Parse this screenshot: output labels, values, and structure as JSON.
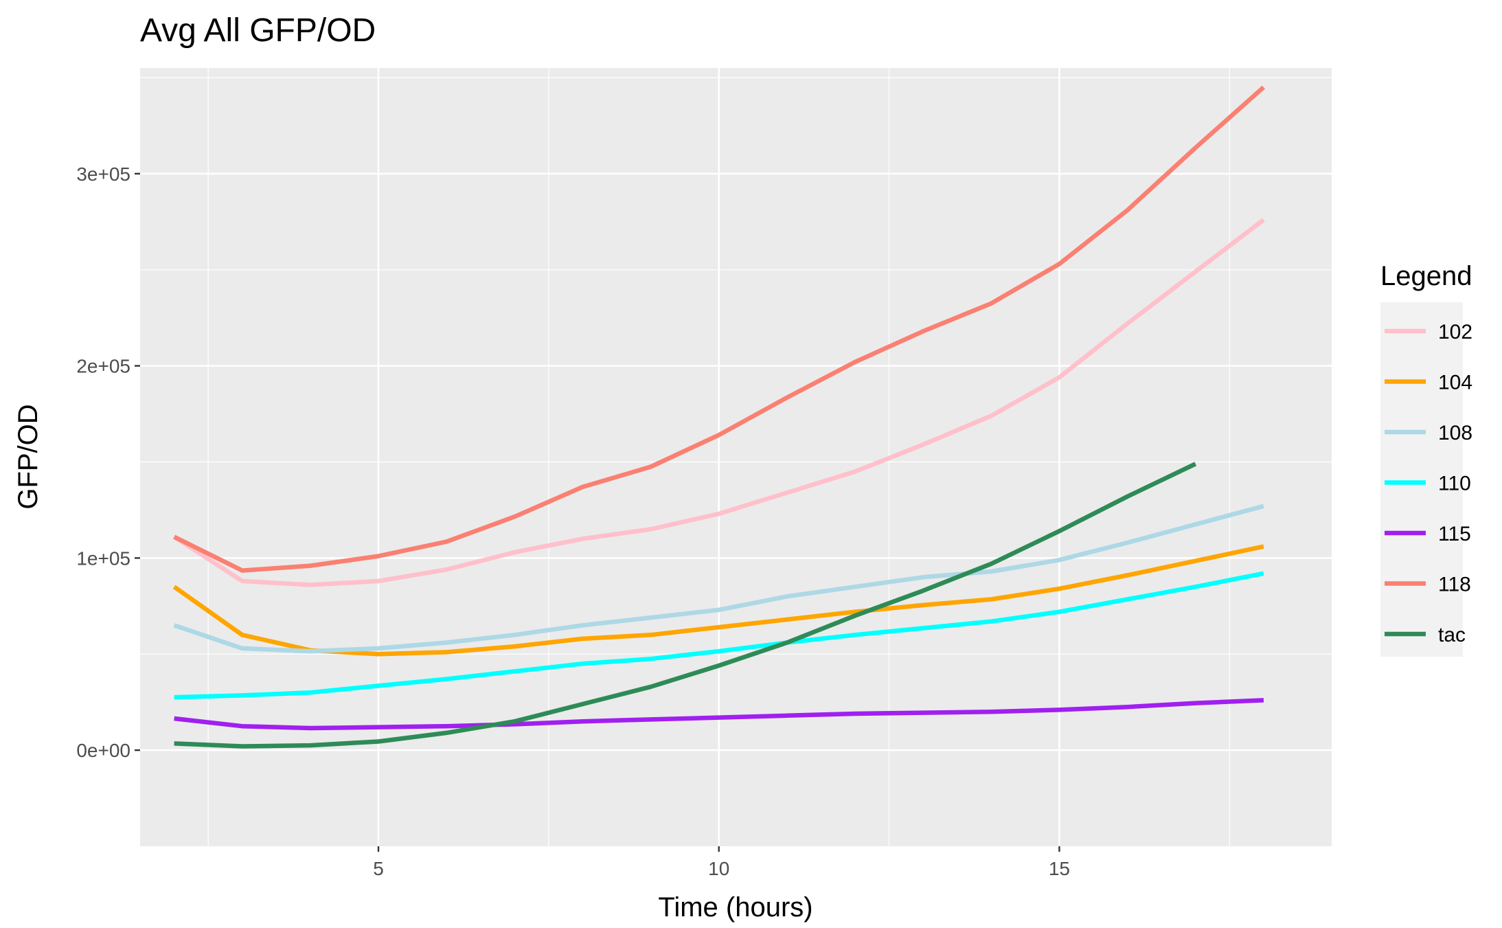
{
  "chart_data": {
    "type": "line",
    "title": "Avg All GFP/OD",
    "xlabel": "Time (hours)",
    "ylabel": "GFP/OD",
    "xlim": [
      1.5,
      19
    ],
    "ylim": [
      -50000,
      355000
    ],
    "x_ticks": [
      5,
      10,
      15
    ],
    "x_tick_labels": [
      "5",
      "10",
      "15"
    ],
    "y_ticks": [
      0,
      100000,
      200000,
      300000
    ],
    "y_tick_labels": [
      "0e+00",
      "1e+05",
      "2e+05",
      "3e+05"
    ],
    "grid": true,
    "legend": {
      "title": "Legend",
      "position": "right"
    },
    "series": [
      {
        "name": "102",
        "color": "#FFC0CB",
        "x": [
          2,
          3,
          4,
          5,
          6,
          7,
          8,
          9,
          10,
          11,
          12,
          13,
          14,
          15,
          16,
          17,
          18
        ],
        "y": [
          111000,
          88000,
          86000,
          88000,
          94000,
          103000,
          110000,
          115000,
          123000,
          134000,
          145000,
          159000,
          174000,
          194000,
          222000,
          249000,
          276000
        ]
      },
      {
        "name": "104",
        "color": "#FFA500",
        "x": [
          2,
          3,
          4,
          5,
          6,
          7,
          8,
          9,
          10,
          11,
          12,
          13,
          14,
          15,
          16,
          17,
          18
        ],
        "y": [
          85000,
          60000,
          52000,
          50000,
          51000,
          54000,
          58000,
          60000,
          64000,
          68000,
          72000,
          75500,
          78500,
          84000,
          91000,
          98500,
          106000
        ]
      },
      {
        "name": "108",
        "color": "#ADD8E6",
        "x": [
          2,
          3,
          4,
          5,
          6,
          7,
          8,
          9,
          10,
          11,
          12,
          13,
          14,
          15,
          16,
          17,
          18
        ],
        "y": [
          65000,
          53000,
          51500,
          53000,
          56000,
          60000,
          65000,
          69000,
          73000,
          80000,
          85000,
          90000,
          93000,
          99000,
          108000,
          117500,
          127000
        ]
      },
      {
        "name": "110",
        "color": "#00FFFF",
        "x": [
          2,
          3,
          4,
          5,
          6,
          7,
          8,
          9,
          10,
          11,
          12,
          13,
          14,
          15,
          16,
          17,
          18
        ],
        "y": [
          27500,
          28500,
          30000,
          33500,
          37000,
          41000,
          45000,
          47500,
          51500,
          56000,
          60000,
          63500,
          67000,
          72000,
          78500,
          85000,
          92000
        ]
      },
      {
        "name": "115",
        "color": "#A020F0",
        "x": [
          2,
          3,
          4,
          5,
          6,
          7,
          8,
          9,
          10,
          11,
          12,
          13,
          14,
          15,
          16,
          17,
          18
        ],
        "y": [
          16500,
          12500,
          11500,
          12000,
          12500,
          13500,
          15000,
          16000,
          17000,
          18000,
          19000,
          19500,
          20000,
          21000,
          22500,
          24500,
          26000
        ]
      },
      {
        "name": "118",
        "color": "#FA8072",
        "x": [
          2,
          3,
          4,
          5,
          6,
          7,
          8,
          9,
          10,
          11,
          12,
          13,
          14,
          15,
          16,
          17,
          18
        ],
        "y": [
          111000,
          93500,
          96000,
          101000,
          108500,
          121500,
          137000,
          147500,
          164000,
          183500,
          202000,
          218000,
          232500,
          253000,
          281000,
          313500,
          345000
        ]
      },
      {
        "name": "tac",
        "color": "#2E8B57",
        "x": [
          2,
          3,
          4,
          5,
          6,
          7,
          8,
          9,
          10,
          11,
          12,
          13,
          14,
          15,
          16,
          17
        ],
        "y": [
          3500,
          2000,
          2500,
          4500,
          9000,
          15000,
          24000,
          33000,
          44000,
          56000,
          70000,
          83000,
          97000,
          114000,
          132000,
          149000
        ]
      }
    ]
  }
}
